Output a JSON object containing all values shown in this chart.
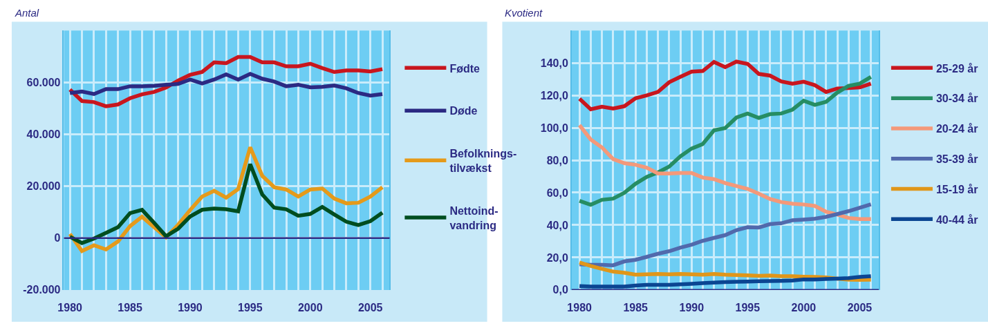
{
  "chart_data": [
    {
      "type": "line",
      "ylabel": "Antal",
      "x": [
        1980,
        1981,
        1982,
        1983,
        1984,
        1985,
        1986,
        1987,
        1988,
        1989,
        1990,
        1991,
        1992,
        1993,
        1994,
        1995,
        1996,
        1997,
        1998,
        1999,
        2000,
        2001,
        2002,
        2003,
        2004,
        2005,
        2006
      ],
      "series": [
        {
          "name": "Fødte",
          "color": "#c8161e",
          "values": [
            57200,
            52800,
            52400,
            50800,
            51500,
            53900,
            55400,
            56300,
            58000,
            60700,
            62900,
            64000,
            67700,
            67400,
            69800,
            69800,
            67700,
            67700,
            66200,
            66200,
            67200,
            65500,
            64000,
            64600,
            64600,
            64200,
            65100
          ]
        },
        {
          "name": "Døde",
          "color": "#2b2a83",
          "values": [
            55900,
            56500,
            55500,
            57400,
            57400,
            58500,
            58500,
            58700,
            59100,
            59400,
            61100,
            59600,
            61100,
            63100,
            61100,
            63300,
            61400,
            60300,
            58500,
            59100,
            58100,
            58300,
            58800,
            57700,
            55900,
            54900,
            55500
          ]
        },
        {
          "name": "Befolknings-\ntilvækst",
          "color": "#e59a1a",
          "values": [
            1600,
            -5000,
            -2800,
            -4400,
            -1300,
            4600,
            8200,
            4200,
            300,
            5100,
            10800,
            16000,
            18200,
            15600,
            18900,
            35000,
            24000,
            19600,
            18700,
            16000,
            18700,
            19100,
            15200,
            13400,
            13600,
            16000,
            19600
          ]
        },
        {
          "name": "Nettoind-\nvandring",
          "color": "#004d1f",
          "values": [
            500,
            -1900,
            -200,
            2000,
            4200,
            9600,
            10900,
            5900,
            700,
            3600,
            8300,
            10900,
            11400,
            11100,
            10300,
            28500,
            16800,
            11700,
            11100,
            8600,
            9300,
            12000,
            9100,
            6300,
            5000,
            6500,
            9800
          ]
        }
      ],
      "xlim": [
        1979.5,
        2006.6
      ],
      "xticks": [
        1980,
        {
          "value": 1981,
          "label": null
        },
        {
          "value": 1982,
          "label": null
        },
        {
          "value": 1983,
          "label": null
        },
        {
          "value": 1984,
          "label": null
        },
        1985,
        {
          "value": 1986,
          "label": null
        },
        {
          "value": 1987,
          "label": null
        },
        {
          "value": 1988,
          "label": null
        },
        {
          "value": 1989,
          "label": null
        },
        1990,
        {
          "value": 1991,
          "label": null
        },
        {
          "value": 1992,
          "label": null
        },
        {
          "value": 1993,
          "label": null
        },
        {
          "value": 1994,
          "label": null
        },
        1995,
        {
          "value": 1996,
          "label": null
        },
        {
          "value": 1997,
          "label": null
        },
        {
          "value": 1998,
          "label": null
        },
        {
          "value": 1999,
          "label": null
        },
        2000,
        {
          "value": 2001,
          "label": null
        },
        {
          "value": 2002,
          "label": null
        },
        {
          "value": 2003,
          "label": null
        },
        {
          "value": 2004,
          "label": null
        },
        2005,
        {
          "value": 2006,
          "label": null
        }
      ],
      "ylim": [
        -20000,
        80000
      ],
      "yticks": [
        {
          "value": -20000,
          "label": "-20.000"
        },
        0,
        {
          "value": 20000,
          "label": "20.000"
        },
        {
          "value": 40000,
          "label": "40.000"
        },
        {
          "value": 60000,
          "label": "60.000"
        }
      ],
      "ref_lines": [
        {
          "axis": "y",
          "value": 0,
          "color": "#2b2a83"
        }
      ],
      "grid": true,
      "legend": "right",
      "marker": "none",
      "line_style": "solid"
    },
    {
      "type": "line",
      "ylabel": "Kvotient",
      "x": [
        1980,
        1981,
        1982,
        1983,
        1984,
        1985,
        1986,
        1987,
        1988,
        1989,
        1990,
        1991,
        1992,
        1993,
        1994,
        1995,
        1996,
        1997,
        1998,
        1999,
        2000,
        2001,
        2002,
        2003,
        2004,
        2005,
        2006
      ],
      "series": [
        {
          "name": "25-29 år",
          "color": "#c8161e",
          "values": [
            117.9,
            111.4,
            113.0,
            111.9,
            113.3,
            118.2,
            120.0,
            122.1,
            128.1,
            131.4,
            134.6,
            135.0,
            140.6,
            137.4,
            140.8,
            139.4,
            133.2,
            132.2,
            128.6,
            127.2,
            128.4,
            126.3,
            122.1,
            124.2,
            124.5,
            124.9,
            127.2
          ]
        },
        {
          "name": "30-34 år",
          "color": "#268d63",
          "values": [
            54.9,
            52.5,
            55.6,
            56.3,
            59.9,
            65.5,
            69.7,
            72.5,
            76.1,
            82.4,
            87.2,
            90.0,
            98.4,
            99.8,
            106.3,
            108.8,
            106.1,
            108.4,
            108.8,
            111.2,
            116.7,
            114.1,
            116.0,
            121.7,
            125.8,
            127.2,
            131.4
          ]
        },
        {
          "name": "20-24 år",
          "color": "#f4997a",
          "values": [
            101.6,
            92.8,
            87.9,
            80.7,
            78.2,
            77.2,
            75.4,
            71.8,
            71.8,
            72.1,
            72.1,
            69.3,
            68.3,
            65.9,
            64.1,
            62.3,
            59.4,
            56.1,
            54.2,
            53.2,
            52.7,
            51.8,
            48.2,
            46.5,
            44.4,
            43.7,
            43.7
          ]
        },
        {
          "name": "35-39 år",
          "color": "#5169ac",
          "values": [
            15.8,
            15.5,
            15.5,
            15.2,
            17.6,
            18.6,
            20.4,
            22.3,
            23.9,
            26.1,
            27.9,
            30.3,
            32.1,
            33.8,
            36.9,
            38.7,
            38.5,
            40.6,
            41.1,
            43.0,
            43.4,
            43.9,
            45.1,
            46.8,
            48.6,
            50.7,
            52.8
          ]
        },
        {
          "name": "15-19 år",
          "color": "#e0961a",
          "values": [
            16.9,
            14.8,
            13.0,
            11.3,
            10.6,
            9.4,
            9.6,
            9.9,
            9.6,
            9.9,
            9.6,
            9.4,
            9.9,
            9.4,
            9.2,
            9.0,
            8.7,
            8.9,
            8.5,
            8.5,
            8.2,
            8.0,
            7.7,
            7.0,
            6.3,
            6.2,
            6.3
          ]
        },
        {
          "name": "40-44 år",
          "color": "#0b4592",
          "values": [
            2.4,
            2.1,
            2.1,
            2.1,
            2.1,
            2.7,
            3.1,
            3.1,
            3.2,
            3.5,
            3.8,
            4.2,
            4.5,
            4.9,
            5.1,
            5.2,
            5.4,
            5.5,
            5.6,
            5.8,
            6.5,
            6.5,
            6.8,
            7.0,
            7.3,
            8.0,
            8.5
          ]
        }
      ],
      "xlim": [
        1979.3,
        2006.7
      ],
      "xticks": [
        1980,
        {
          "value": 1981,
          "label": null
        },
        {
          "value": 1982,
          "label": null
        },
        {
          "value": 1983,
          "label": null
        },
        {
          "value": 1984,
          "label": null
        },
        1985,
        {
          "value": 1986,
          "label": null
        },
        {
          "value": 1987,
          "label": null
        },
        {
          "value": 1988,
          "label": null
        },
        {
          "value": 1989,
          "label": null
        },
        1990,
        {
          "value": 1991,
          "label": null
        },
        {
          "value": 1992,
          "label": null
        },
        {
          "value": 1993,
          "label": null
        },
        {
          "value": 1994,
          "label": null
        },
        1995,
        {
          "value": 1996,
          "label": null
        },
        {
          "value": 1997,
          "label": null
        },
        {
          "value": 1998,
          "label": null
        },
        {
          "value": 1999,
          "label": null
        },
        2000,
        {
          "value": 2001,
          "label": null
        },
        {
          "value": 2002,
          "label": null
        },
        {
          "value": 2003,
          "label": null
        },
        {
          "value": 2004,
          "label": null
        },
        2005,
        {
          "value": 2006,
          "label": null
        }
      ],
      "ylim": [
        0,
        160
      ],
      "yticks": [
        {
          "value": 0,
          "label": "0,0"
        },
        {
          "value": 20,
          "label": "20,0"
        },
        {
          "value": 40,
          "label": "40,0"
        },
        {
          "value": 60,
          "label": "60,0"
        },
        {
          "value": 80,
          "label": "80,0"
        },
        {
          "value": 100,
          "label": "100,0"
        },
        {
          "value": 120,
          "label": "120,0"
        },
        {
          "value": 140,
          "label": "140,0"
        }
      ],
      "grid": true,
      "legend": "right",
      "marker": "none",
      "line_style": "solid"
    }
  ]
}
